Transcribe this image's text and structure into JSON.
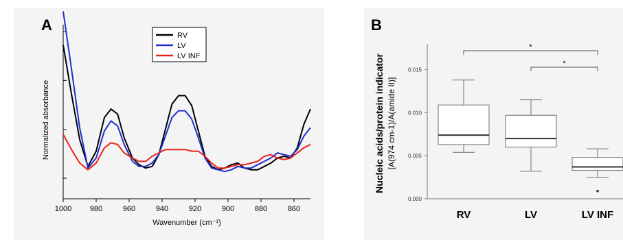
{
  "chart_data": [
    {
      "panel_label": "A",
      "type": "line",
      "xlabel": "Wavenumber (cm⁻¹)",
      "ylabel": "Normalized absorbance",
      "x_reversed": true,
      "xlim": [
        1000,
        850
      ],
      "x_ticks": [
        1000,
        980,
        960,
        940,
        920,
        900,
        880,
        860
      ],
      "ylim": [
        0,
        1
      ],
      "y_ticks_unlabeled": true,
      "legend": {
        "placement": "top-center",
        "entries": [
          "RV",
          "LV",
          "LV INF"
        ]
      },
      "x": [
        1000,
        995,
        990,
        985,
        980,
        975,
        971,
        967,
        963,
        958,
        954,
        950,
        946,
        942,
        938,
        934,
        930,
        926,
        922,
        918,
        914,
        910,
        906,
        902,
        898,
        894,
        890,
        886,
        882,
        878,
        874,
        870,
        866,
        862,
        858,
        854,
        850
      ],
      "series": [
        {
          "name": "RV",
          "color": "#000000",
          "values": [
            0.79,
            0.5,
            0.23,
            0.07,
            0.16,
            0.36,
            0.41,
            0.38,
            0.24,
            0.12,
            0.08,
            0.06,
            0.07,
            0.14,
            0.29,
            0.44,
            0.49,
            0.49,
            0.43,
            0.28,
            0.13,
            0.07,
            0.05,
            0.06,
            0.08,
            0.09,
            0.06,
            0.05,
            0.05,
            0.07,
            0.09,
            0.12,
            0.13,
            0.12,
            0.18,
            0.32,
            0.41
          ]
        },
        {
          "name": "LV",
          "color": "#1f2fd0",
          "values": [
            0.99,
            0.65,
            0.3,
            0.06,
            0.12,
            0.28,
            0.34,
            0.31,
            0.2,
            0.1,
            0.07,
            0.07,
            0.09,
            0.14,
            0.25,
            0.36,
            0.4,
            0.4,
            0.35,
            0.24,
            0.12,
            0.06,
            0.05,
            0.04,
            0.05,
            0.07,
            0.06,
            0.06,
            0.08,
            0.1,
            0.12,
            0.15,
            0.14,
            0.13,
            0.17,
            0.25,
            0.3
          ]
        },
        {
          "name": "LV INF",
          "color": "#e8231b",
          "values": [
            0.26,
            0.17,
            0.09,
            0.05,
            0.09,
            0.18,
            0.21,
            0.2,
            0.15,
            0.12,
            0.1,
            0.1,
            0.13,
            0.15,
            0.17,
            0.17,
            0.17,
            0.17,
            0.16,
            0.16,
            0.13,
            0.09,
            0.06,
            0.06,
            0.07,
            0.08,
            0.08,
            0.09,
            0.1,
            0.13,
            0.14,
            0.12,
            0.11,
            0.12,
            0.15,
            0.18,
            0.2
          ]
        }
      ]
    },
    {
      "panel_label": "B",
      "type": "box",
      "ylabel_line1": "Nucleic acids/protein indicator",
      "ylabel_line2": "[A(974 cm-1)/A(amide II)]",
      "ylim": [
        0,
        0.018
      ],
      "y_ticks": [
        0.0,
        0.005,
        0.01,
        0.015
      ],
      "y_tick_labels": [
        "0.000",
        "0.005",
        "0.010",
        "0.015"
      ],
      "categories": [
        "RV",
        "LV",
        "LV INF"
      ],
      "boxes": [
        {
          "name": "RV",
          "whisker_low": 0.0054,
          "q1": 0.0063,
          "median": 0.0074,
          "q3": 0.0109,
          "whisker_high": 0.0138,
          "outliers": []
        },
        {
          "name": "LV",
          "whisker_low": 0.0032,
          "q1": 0.006,
          "median": 0.007,
          "q3": 0.0097,
          "whisker_high": 0.0115,
          "outliers": []
        },
        {
          "name": "LV INF",
          "whisker_low": 0.0025,
          "q1": 0.0033,
          "median": 0.0037,
          "q3": 0.0048,
          "whisker_high": 0.0058,
          "outliers": [
            0.0009
          ]
        }
      ],
      "significance": [
        {
          "from": "RV",
          "to": "LV INF",
          "label": "*"
        },
        {
          "from": "LV",
          "to": "LV INF",
          "label": "*"
        }
      ]
    }
  ]
}
